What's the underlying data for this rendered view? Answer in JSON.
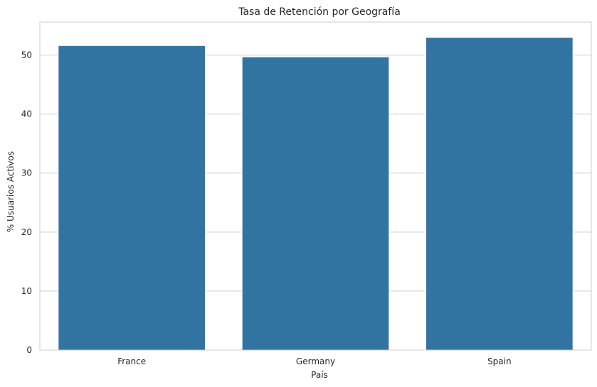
{
  "chart_data": {
    "type": "bar",
    "title": "Tasa de Retención por Geografía",
    "xlabel": "País",
    "ylabel": "% Usuarios Activos",
    "categories": [
      "France",
      "Germany",
      "Spain"
    ],
    "values": [
      51.6,
      49.7,
      53.0
    ],
    "ylim": [
      0,
      55.6
    ],
    "yticks": [
      0,
      10,
      20,
      30,
      40,
      50
    ],
    "grid": "y-major",
    "bar_color": "#3274a1"
  }
}
